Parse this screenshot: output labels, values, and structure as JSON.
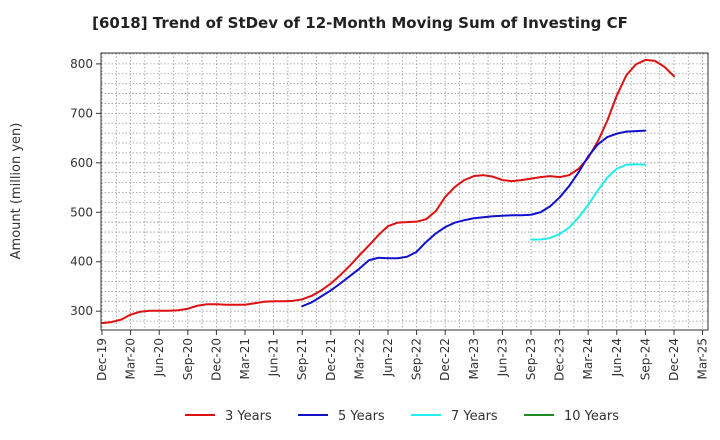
{
  "chart_data": {
    "type": "line",
    "title": "[6018]  Trend of StDev of 12-Month Moving Sum of Investing CF",
    "xlabel": "",
    "ylabel": "Amount (million yen)",
    "x_ticks": [
      "Dec-19",
      "Mar-20",
      "Jun-20",
      "Sep-20",
      "Dec-20",
      "Mar-21",
      "Jun-21",
      "Sep-21",
      "Dec-21",
      "Mar-22",
      "Jun-22",
      "Sep-22",
      "Dec-22",
      "Mar-23",
      "Jun-23",
      "Sep-23",
      "Dec-23",
      "Mar-24",
      "Jun-24",
      "Sep-24",
      "Dec-24",
      "Mar-25"
    ],
    "y_ticks": [
      300,
      400,
      500,
      600,
      700,
      800
    ],
    "ylim": [
      262,
      822
    ],
    "grid": true,
    "legend_position": "bottom",
    "series": [
      {
        "name": "3 Years",
        "color": "#dd1111",
        "start_month": "Dec-19",
        "values": [
          276,
          278,
          283,
          293,
          299,
          301,
          301,
          301,
          302,
          305,
          311,
          314,
          314,
          313,
          313,
          313,
          316,
          319,
          320,
          320,
          321,
          324,
          331,
          342,
          356,
          373,
          392,
          413,
          433,
          454,
          472,
          479,
          480,
          481,
          486,
          502,
          531,
          551,
          565,
          573,
          575,
          572,
          565,
          563,
          565,
          568,
          571,
          573,
          571,
          575,
          588,
          610,
          643,
          685,
          736,
          777,
          799,
          808,
          806,
          794,
          775
        ]
      },
      {
        "name": "5 Years",
        "color": "#1111cc",
        "start_month": "Sep-21",
        "values": [
          310,
          318,
          330,
          342,
          356,
          371,
          386,
          403,
          408,
          407,
          407,
          410,
          420,
          440,
          457,
          470,
          479,
          484,
          488,
          490,
          492,
          493,
          494,
          494,
          495,
          500,
          512,
          530,
          553,
          581,
          613,
          637,
          652,
          659,
          663,
          664,
          665
        ]
      },
      {
        "name": "7 Years",
        "color": "#22eeee",
        "start_month": "Sep-23",
        "values": [
          445,
          445,
          448,
          456,
          469,
          490,
          515,
          544,
          570,
          588,
          596,
          597,
          596
        ]
      },
      {
        "name": "10 Years",
        "color": "#228822",
        "start_month": "",
        "values": []
      }
    ]
  }
}
